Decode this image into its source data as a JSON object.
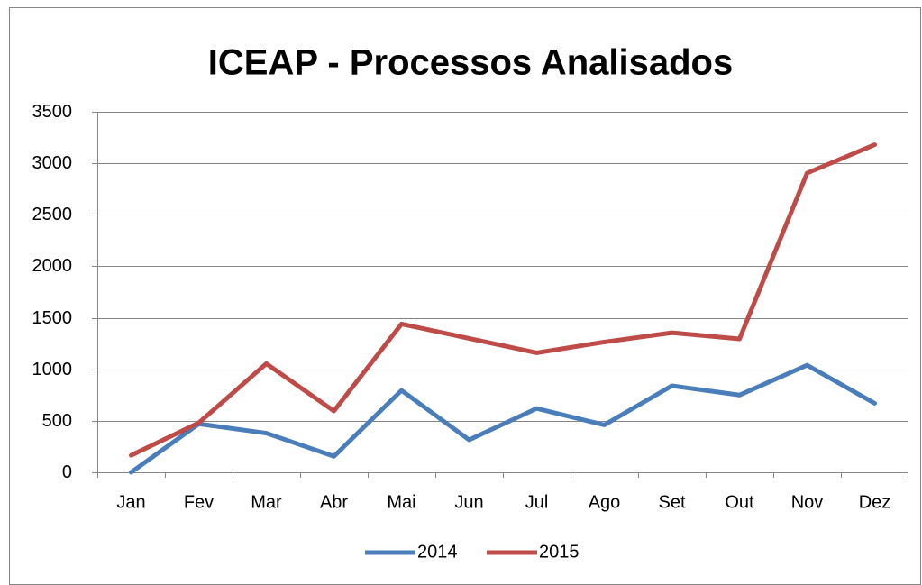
{
  "chart_data": {
    "type": "line",
    "title": "ICEAP - Processos Analisados",
    "categories": [
      "Jan",
      "Fev",
      "Mar",
      "Abr",
      "Mai",
      "Jun",
      "Jul",
      "Ago",
      "Set",
      "Out",
      "Nov",
      "Dez"
    ],
    "series": [
      {
        "name": "2014",
        "color": "#4a7ebb",
        "values": [
          0,
          470,
          380,
          155,
          795,
          315,
          620,
          460,
          840,
          750,
          1040,
          670
        ]
      },
      {
        "name": "2015",
        "color": "#be4b48",
        "values": [
          165,
          480,
          1055,
          595,
          1440,
          1300,
          1160,
          1265,
          1355,
          1295,
          2905,
          3180
        ]
      }
    ],
    "ylim": [
      0,
      3500
    ],
    "yticks": [
      0,
      500,
      1000,
      1500,
      2000,
      2500,
      3000,
      3500
    ],
    "grid": true,
    "legend": "bottom"
  }
}
